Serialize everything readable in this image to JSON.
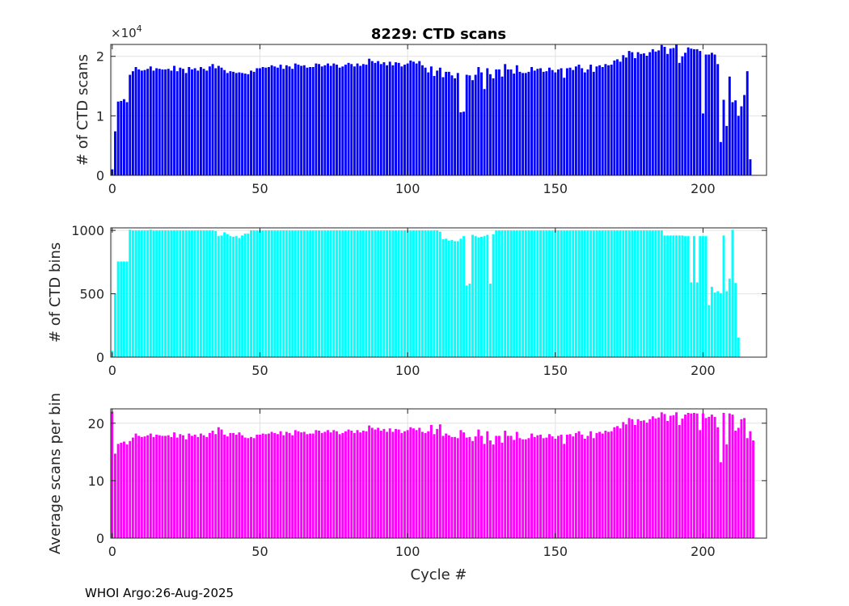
{
  "title": "8229: CTD scans",
  "footer": "WHOI Argo:26-Aug-2025",
  "xlabel": "Cycle #",
  "chart_data": [
    {
      "type": "bar",
      "id": "scans",
      "color": "#0000ff",
      "ylabel": "# of CTD scans",
      "ylim": [
        0,
        22000
      ],
      "yticks": [
        0,
        10000,
        20000
      ],
      "ytick_labels": [
        "0",
        "1",
        "2"
      ],
      "exponent_label": "×10",
      "exponent_power": "4",
      "xlim": [
        -0.5,
        221.5
      ],
      "xticks": [
        0,
        50,
        100,
        150,
        200
      ],
      "values": [
        1000,
        7400,
        12400,
        12500,
        12800,
        12300,
        16900,
        17500,
        18200,
        17800,
        17600,
        17700,
        17900,
        18300,
        17600,
        18000,
        17900,
        17800,
        17800,
        17900,
        17600,
        18400,
        17500,
        18100,
        17900,
        17200,
        18200,
        17800,
        18000,
        17600,
        18200,
        17900,
        17600,
        18300,
        18700,
        18000,
        18400,
        18100,
        17700,
        17200,
        17500,
        17400,
        17200,
        17300,
        17200,
        17100,
        17000,
        17600,
        17400,
        18000,
        18000,
        18200,
        18100,
        18200,
        18500,
        18300,
        18100,
        18600,
        17900,
        18500,
        18300,
        17900,
        18800,
        18600,
        18400,
        18500,
        18100,
        18200,
        18200,
        18800,
        18700,
        18300,
        18500,
        18800,
        18400,
        18800,
        18600,
        18100,
        18300,
        18600,
        18900,
        18700,
        18300,
        18800,
        18400,
        18700,
        18600,
        19600,
        19200,
        18900,
        19200,
        18700,
        19000,
        18500,
        19100,
        18500,
        19000,
        18900,
        18300,
        18600,
        18800,
        19300,
        19100,
        18800,
        19200,
        18500,
        18100,
        17300,
        18300,
        16700,
        17600,
        18100,
        16500,
        17400,
        17400,
        16800,
        16300,
        17200,
        10600,
        10700,
        16900,
        16800,
        16000,
        16900,
        18200,
        17300,
        14500,
        18000,
        17000,
        16300,
        17800,
        17800,
        16600,
        18700,
        17800,
        17800,
        17100,
        18500,
        17400,
        17200,
        17200,
        17400,
        18200,
        17600,
        17900,
        18000,
        17400,
        17500,
        18100,
        17700,
        17300,
        17800,
        18000,
        16400,
        18000,
        18100,
        17700,
        18300,
        18600,
        18000,
        17300,
        17800,
        18600,
        17400,
        18300,
        18500,
        18200,
        18700,
        18500,
        18600,
        19300,
        19500,
        19100,
        20200,
        19800,
        20900,
        20700,
        19700,
        20700,
        20400,
        20500,
        20100,
        20700,
        21200,
        20800,
        21000,
        21900,
        21600,
        20400,
        21300,
        21400,
        22000,
        18900,
        20000,
        20600,
        21500,
        21300,
        21200,
        21200,
        20900,
        10400,
        20300,
        20300,
        20600,
        20300,
        18700,
        5600,
        12700,
        8300,
        16600,
        12300,
        12600,
        10000,
        11600,
        13500,
        17500,
        2700
      ]
    },
    {
      "type": "bar",
      "id": "bins",
      "color": "#00ffff",
      "ylabel": "# of CTD bins",
      "ylim": [
        0,
        1020
      ],
      "yticks": [
        0,
        500,
        1000
      ],
      "ytick_labels": [
        "0",
        "500",
        "1000"
      ],
      "xlim": [
        -0.5,
        221.5
      ],
      "xticks": [
        0,
        50,
        100,
        150,
        200
      ],
      "values": [
        50,
        500,
        755,
        755,
        755,
        755,
        1005,
        1000,
        1000,
        1000,
        1000,
        1000,
        1000,
        1005,
        1000,
        1000,
        1000,
        1000,
        1000,
        1000,
        1000,
        1000,
        1000,
        1000,
        1000,
        1000,
        1000,
        1000,
        1000,
        1000,
        1000,
        1000,
        1000,
        1000,
        1000,
        995,
        955,
        960,
        985,
        970,
        955,
        950,
        955,
        940,
        960,
        975,
        975,
        1000,
        1000,
        1000,
        1000,
        1000,
        1000,
        1000,
        1000,
        1000,
        1000,
        1000,
        1000,
        1000,
        1000,
        1000,
        1000,
        1000,
        1000,
        1000,
        1000,
        1000,
        1000,
        1000,
        1000,
        1000,
        1000,
        1000,
        1000,
        1000,
        1000,
        1000,
        1000,
        1000,
        1000,
        1000,
        1000,
        1000,
        1000,
        1000,
        1000,
        1000,
        1000,
        1000,
        1000,
        1000,
        1000,
        1000,
        1000,
        1000,
        1000,
        1000,
        1000,
        1000,
        1000,
        1000,
        1000,
        1000,
        1000,
        1000,
        1000,
        1000,
        1000,
        1000,
        1000,
        990,
        930,
        935,
        920,
        925,
        915,
        915,
        935,
        955,
        565,
        580,
        965,
        955,
        945,
        950,
        955,
        965,
        580,
        970,
        1000,
        1000,
        1000,
        1000,
        1000,
        1000,
        1000,
        1000,
        1000,
        1000,
        1000,
        1000,
        1000,
        1000,
        1000,
        1000,
        1000,
        1000,
        1000,
        1000,
        1000,
        1000,
        1000,
        1000,
        1000,
        1000,
        1000,
        1000,
        1000,
        1000,
        1000,
        1000,
        1000,
        1000,
        1000,
        1000,
        1000,
        1000,
        1000,
        1000,
        1000,
        1000,
        1000,
        1000,
        1000,
        1000,
        1000,
        1000,
        1000,
        1000,
        1000,
        1000,
        1000,
        1000,
        1000,
        1000,
        1000,
        960,
        960,
        960,
        960,
        960,
        960,
        960,
        955,
        955,
        590,
        955,
        590,
        955,
        955,
        955,
        410,
        555,
        510,
        520,
        505,
        960,
        520,
        620,
        1005,
        585,
        155
      ]
    },
    {
      "type": "bar",
      "id": "ratio",
      "color": "#ff00ff",
      "ylabel": "Average scans per bin",
      "ylim": [
        0,
        22.5
      ],
      "yticks": [
        0,
        10,
        20
      ],
      "ytick_labels": [
        "0",
        "10",
        "20"
      ],
      "xlim": [
        -0.5,
        221.5
      ],
      "xticks": [
        0,
        50,
        100,
        150,
        200
      ],
      "values": [
        22.0,
        14.7,
        16.4,
        16.6,
        16.8,
        16.3,
        16.9,
        17.5,
        18.2,
        17.8,
        17.6,
        17.7,
        17.9,
        18.2,
        17.6,
        18.0,
        17.9,
        17.8,
        17.8,
        17.9,
        17.6,
        18.4,
        17.5,
        18.1,
        17.9,
        17.2,
        18.2,
        17.8,
        18.0,
        17.6,
        18.2,
        17.9,
        17.6,
        18.3,
        18.7,
        18.1,
        19.3,
        18.9,
        18.0,
        17.7,
        18.3,
        18.3,
        18.0,
        18.4,
        17.9,
        17.5,
        17.4,
        17.6,
        17.4,
        18.0,
        18.0,
        18.2,
        18.1,
        18.2,
        18.5,
        18.3,
        18.1,
        18.6,
        17.9,
        18.5,
        18.3,
        17.9,
        18.8,
        18.6,
        18.4,
        18.5,
        18.1,
        18.2,
        18.2,
        18.8,
        18.7,
        18.3,
        18.5,
        18.8,
        18.4,
        18.8,
        18.6,
        18.1,
        18.3,
        18.6,
        18.9,
        18.7,
        18.3,
        18.8,
        18.4,
        18.7,
        18.6,
        19.6,
        19.2,
        18.9,
        19.2,
        18.7,
        19.0,
        18.5,
        19.1,
        18.5,
        19.0,
        18.9,
        18.3,
        18.6,
        18.8,
        19.3,
        19.1,
        18.8,
        19.2,
        18.5,
        18.3,
        18.6,
        19.7,
        18.1,
        19.0,
        19.8,
        17.8,
        18.2,
        17.9,
        17.6,
        17.6,
        17.4,
        18.8,
        18.4,
        17.5,
        17.6,
        16.9,
        17.7,
        18.9,
        17.8,
        16.4,
        18.6,
        17.0,
        16.3,
        17.8,
        17.8,
        16.6,
        18.7,
        17.8,
        17.8,
        17.1,
        18.5,
        17.4,
        17.2,
        17.2,
        17.4,
        18.2,
        17.6,
        17.9,
        18.0,
        17.4,
        17.5,
        18.1,
        17.7,
        17.3,
        17.8,
        18.0,
        16.4,
        18.0,
        18.1,
        17.7,
        18.3,
        18.6,
        18.0,
        17.3,
        17.8,
        18.6,
        17.4,
        18.3,
        18.5,
        18.2,
        18.7,
        18.5,
        18.6,
        19.3,
        19.5,
        19.1,
        20.2,
        19.8,
        20.9,
        20.7,
        19.7,
        20.7,
        20.4,
        20.5,
        20.1,
        20.7,
        21.2,
        20.8,
        21.0,
        21.9,
        21.6,
        20.4,
        21.3,
        21.4,
        21.9,
        19.7,
        20.8,
        21.5,
        21.8,
        21.7,
        21.8,
        21.7,
        18.8,
        21.7,
        20.9,
        21.1,
        21.5,
        21.1,
        19.3,
        13.2,
        21.8,
        16.3,
        21.7,
        21.5,
        18.7,
        19.2,
        20.7,
        20.9,
        17.4,
        18.6,
        17.0
      ]
    }
  ]
}
